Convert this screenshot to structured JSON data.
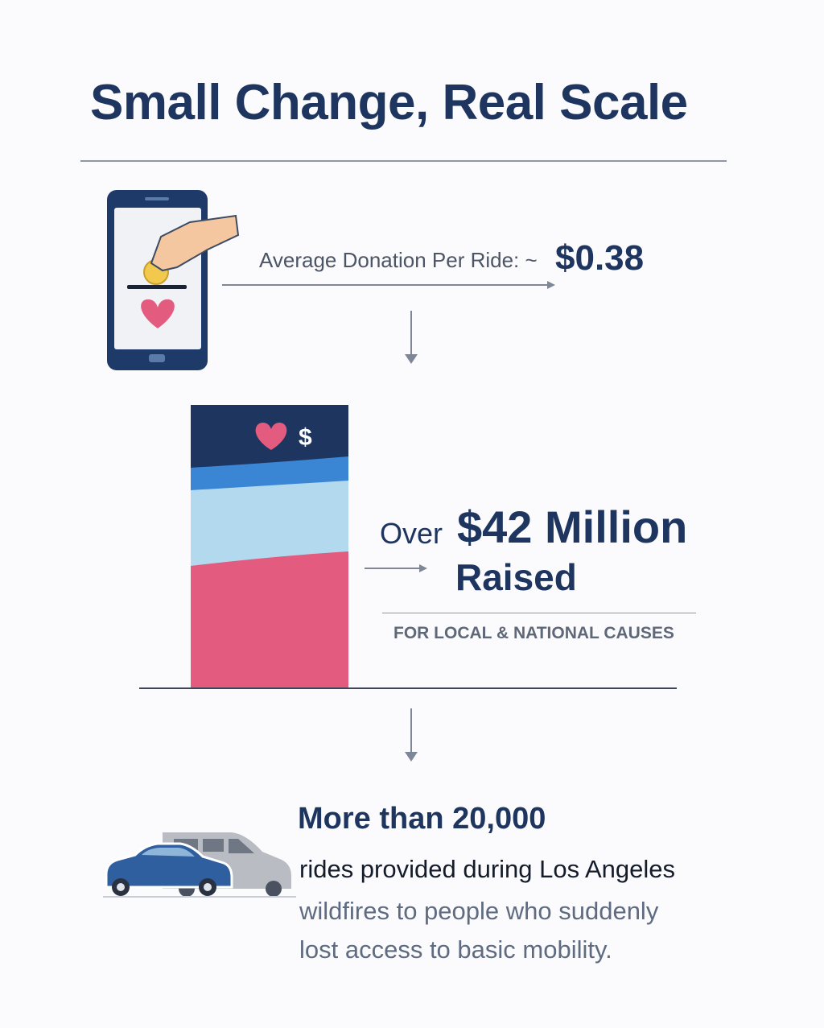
{
  "title": "Small Change, Real Scale",
  "donation": {
    "label": "Average Donation Per Ride: ~",
    "value": "$0.38"
  },
  "raised": {
    "prefix": "Over",
    "amount": "$42 Million",
    "suffix": "Raised",
    "caption": "FOR LOCAL & NATIONAL CAUSES",
    "bar_symbol": "$"
  },
  "rides": {
    "headline": "More than 20,000",
    "line1": "rides provided during Los Angeles",
    "line2": "wildfires to people who suddenly",
    "line3": "lost access to basic mobility."
  },
  "colors": {
    "navy": "#1e3560",
    "blue": "#3a86d4",
    "light_blue": "#b3d9ef",
    "pink": "#e45b80",
    "gray": "#8e97a6"
  }
}
